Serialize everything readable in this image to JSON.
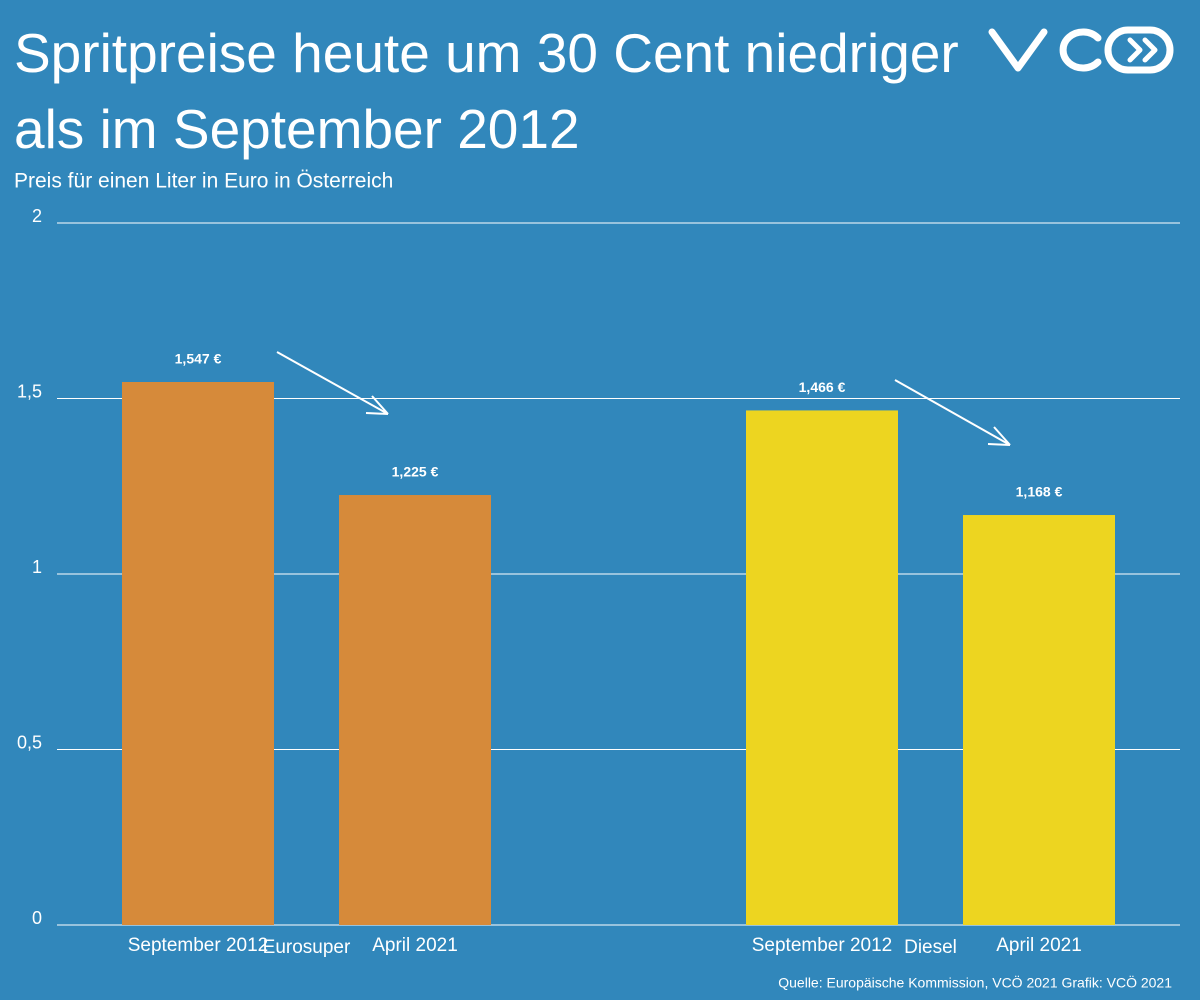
{
  "chart_data": {
    "type": "bar",
    "title": [
      "Spritpreise heute um 30 Cent niedriger",
      "als im September 2012"
    ],
    "subtitle": "Preis für einen Liter in Euro in Österreich",
    "categories": [
      "September 2012",
      "April 2021"
    ],
    "series": [
      {
        "name": "Eurosuper",
        "color": "#d68a3a",
        "values": [
          1.547,
          1.225
        ],
        "value_labels": [
          "1,547 €",
          "1,225 €"
        ]
      },
      {
        "name": "Diesel",
        "color": "#edd520",
        "values": [
          1.466,
          1.168
        ],
        "value_labels": [
          "1,466 €",
          "1,168 €"
        ]
      }
    ],
    "ylim": [
      0,
      2
    ],
    "yticks": [
      0,
      {
        "value": 0.5,
        "label": "0,5"
      },
      1,
      {
        "value": 1.5,
        "label": "1,5"
      },
      2
    ],
    "grid": true,
    "source": "Quelle: Europäische Kommission, VCÖ 2021 Grafik: VCÖ 2021"
  }
}
